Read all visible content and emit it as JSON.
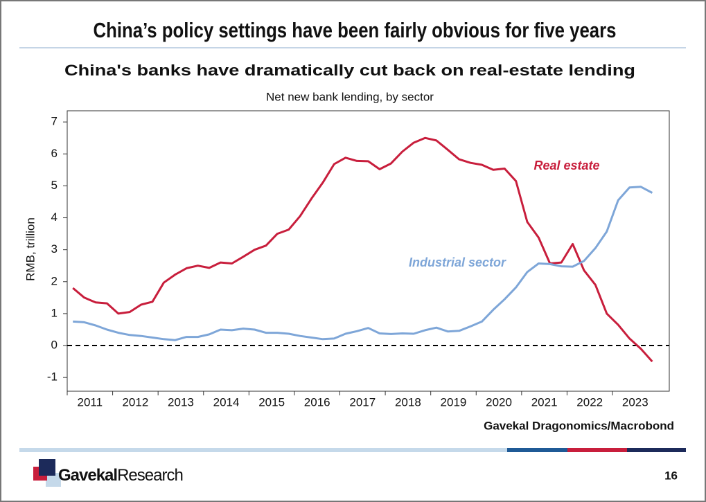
{
  "slide_title": "China’s policy settings have been fairly obvious for five years",
  "chart_data": {
    "type": "line",
    "title": "China's banks have dramatically cut back on real-estate lending",
    "subtitle": "Net new bank lending, by sector",
    "ylabel": "RMB, trillion",
    "source": "Gavekal Dragonomics/Macrobond",
    "x": [
      2011.125,
      2011.375,
      2011.625,
      2011.875,
      2012.125,
      2012.375,
      2012.625,
      2012.875,
      2013.125,
      2013.375,
      2013.625,
      2013.875,
      2014.125,
      2014.375,
      2014.625,
      2014.875,
      2015.125,
      2015.375,
      2015.625,
      2015.875,
      2016.125,
      2016.375,
      2016.625,
      2016.875,
      2017.125,
      2017.375,
      2017.625,
      2017.875,
      2018.125,
      2018.375,
      2018.625,
      2018.875,
      2019.125,
      2019.375,
      2019.625,
      2019.875,
      2020.125,
      2020.375,
      2020.625,
      2020.875,
      2021.125,
      2021.375,
      2021.625,
      2021.875,
      2022.125,
      2022.375,
      2022.625,
      2022.875,
      2023.125,
      2023.375,
      2023.625,
      2023.875
    ],
    "series": [
      {
        "name": "Real estate",
        "color": "#c81e3c",
        "values": [
          1.8,
          1.5,
          1.35,
          1.32,
          1.0,
          1.05,
          1.28,
          1.37,
          1.97,
          2.22,
          2.42,
          2.5,
          2.43,
          2.6,
          2.57,
          2.78,
          3.0,
          3.13,
          3.5,
          3.63,
          4.05,
          4.6,
          5.1,
          5.68,
          5.88,
          5.78,
          5.77,
          5.52,
          5.7,
          6.07,
          6.35,
          6.5,
          6.42,
          6.13,
          5.83,
          5.72,
          5.66,
          5.5,
          5.54,
          5.15,
          3.87,
          3.38,
          2.57,
          2.6,
          3.18,
          2.35,
          1.9,
          1.0,
          0.65,
          0.22,
          -0.1,
          -0.5
        ]
      },
      {
        "name": "Industrial sector",
        "color": "#7ea6d8",
        "values": [
          0.75,
          0.73,
          0.63,
          0.5,
          0.4,
          0.33,
          0.3,
          0.25,
          0.2,
          0.17,
          0.27,
          0.27,
          0.35,
          0.5,
          0.48,
          0.53,
          0.5,
          0.4,
          0.4,
          0.37,
          0.3,
          0.25,
          0.2,
          0.22,
          0.37,
          0.45,
          0.55,
          0.38,
          0.36,
          0.38,
          0.37,
          0.48,
          0.56,
          0.44,
          0.46,
          0.6,
          0.75,
          1.12,
          1.45,
          1.82,
          2.3,
          2.57,
          2.55,
          2.48,
          2.47,
          2.65,
          3.05,
          3.57,
          4.55,
          4.95,
          4.97,
          4.78
        ]
      }
    ],
    "xlim": [
      2011,
      2024.25
    ],
    "xticks": [
      2011,
      2012,
      2013,
      2014,
      2015,
      2016,
      2017,
      2018,
      2019,
      2020,
      2021,
      2022,
      2023
    ],
    "ylim": [
      -1.43,
      7.35
    ],
    "yticks": [
      -1,
      0,
      1,
      2,
      3,
      4,
      5,
      6,
      7
    ],
    "zero_line": true
  },
  "footer": {
    "logo_bold": "Gavekal",
    "logo_light": "Research",
    "page_number": "16"
  }
}
